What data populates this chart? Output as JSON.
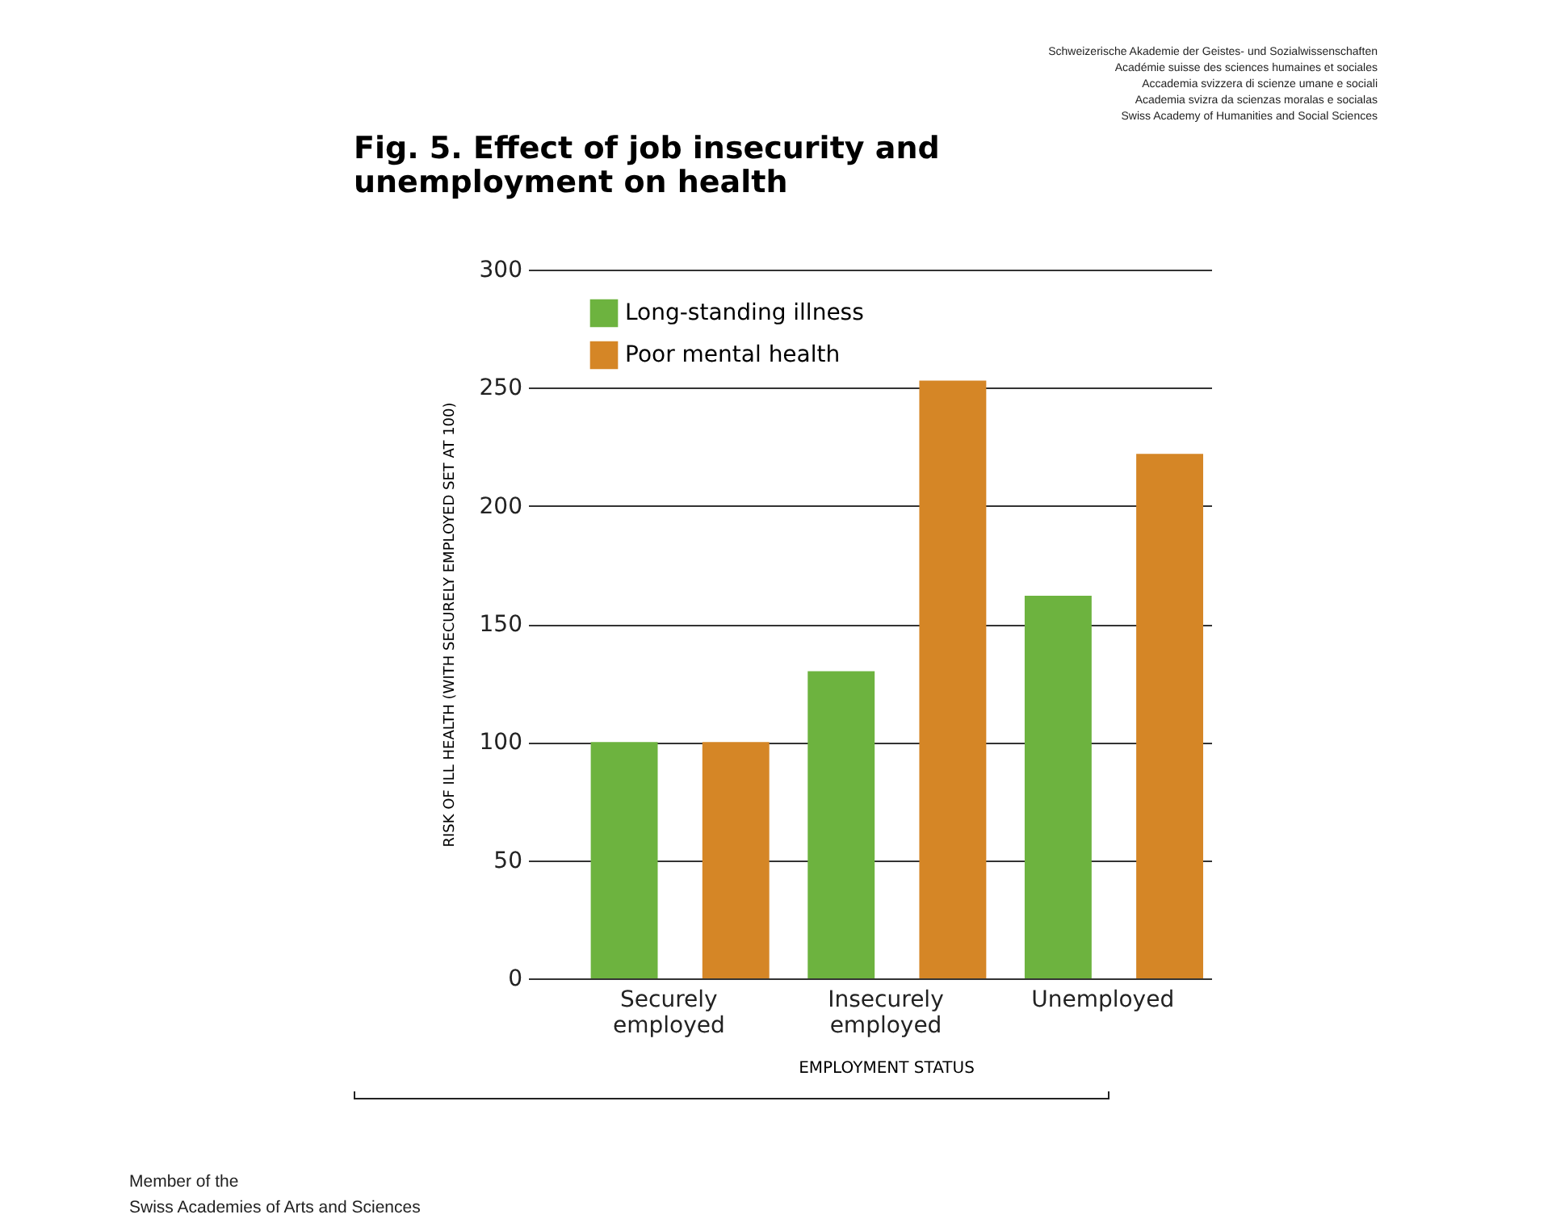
{
  "chart_data": {
    "type": "bar",
    "title": "Fig. 5. Effect of job insecurity and unemployment on health",
    "xlabel": "EMPLOYMENT STATUS",
    "ylabel": "RISK OF ILL HEALTH (WITH SECURELY EMPLOYED SET AT 100)",
    "categories": [
      "Securely employed",
      "Insecurely employed",
      "Unemployed"
    ],
    "series": [
      {
        "name": "Long-standing illness",
        "color": "#6db33f",
        "values": [
          100,
          130,
          162
        ]
      },
      {
        "name": "Poor mental health",
        "color": "#d58626",
        "values": [
          100,
          253,
          222
        ]
      }
    ],
    "ylim": [
      0,
      300
    ],
    "yticks": [
      0,
      50,
      100,
      150,
      200,
      250,
      300
    ],
    "grid": "y",
    "legend": "top left",
    "annotations": [
      "Schweizerische Akademie der Geistes- und Sozialwissenschaften",
      "Académie suisse des sciences humaines et sociales",
      "Accademia svizzera di scienze umane e sociali",
      "Academia svizra da scienzas moralas e socialas",
      "Swiss Academy of Humanities and Social Sciences",
      "Member of the",
      "Swiss Academies of Arts and Sciences"
    ]
  }
}
